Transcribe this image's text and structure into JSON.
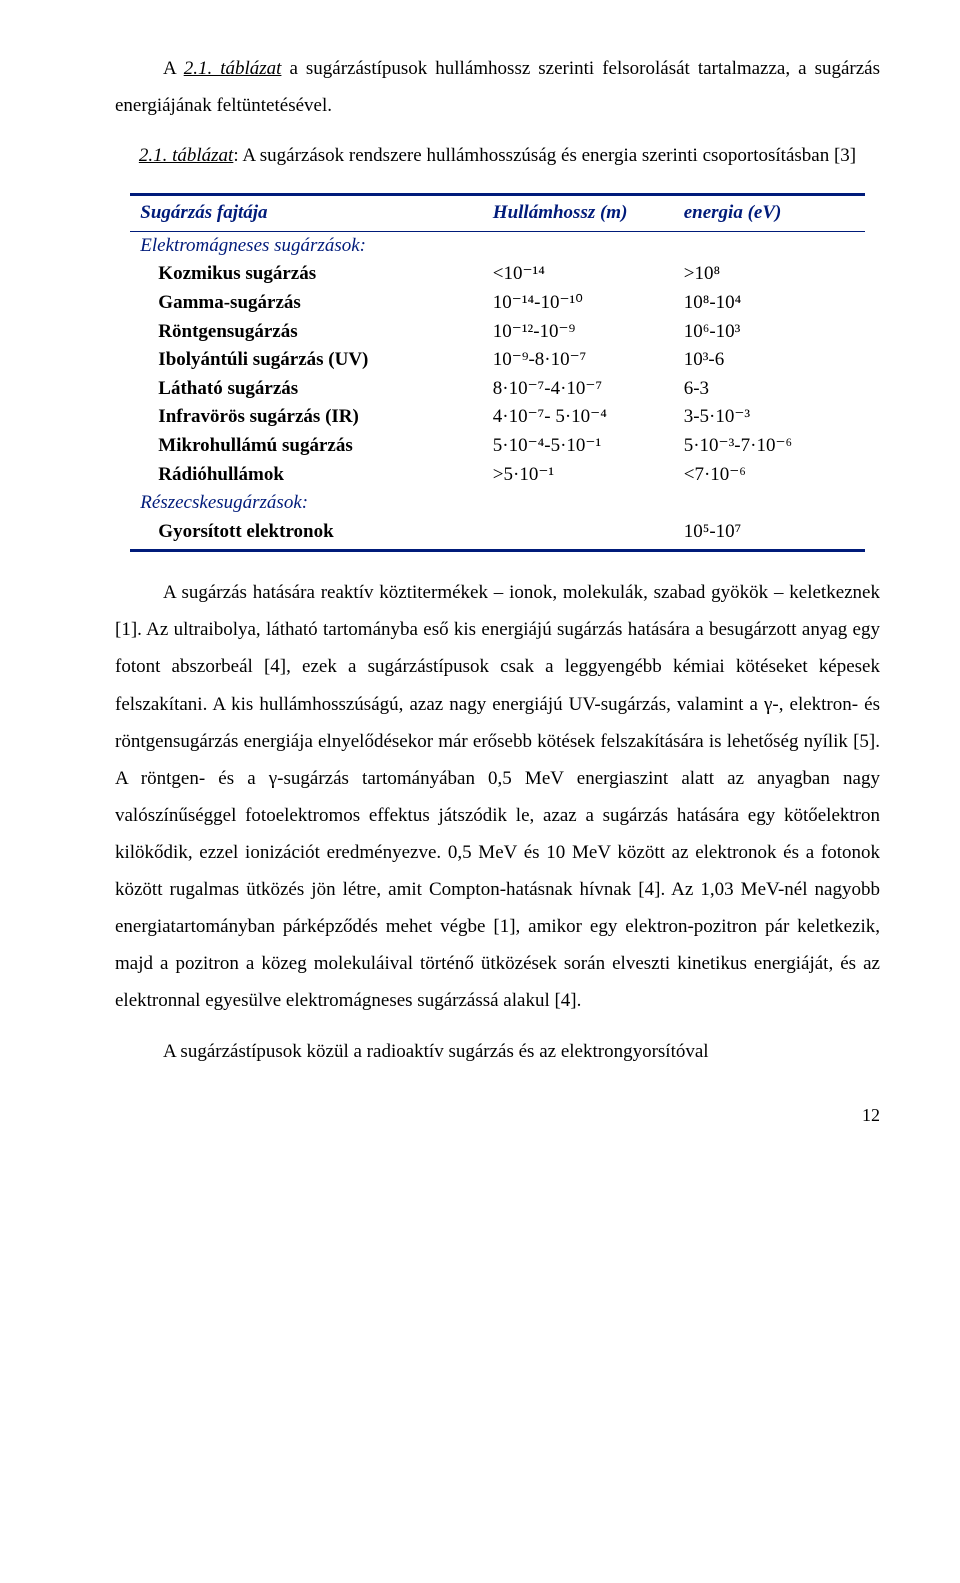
{
  "intro": {
    "para1_pre": "A ",
    "para1_link": "2.1. táblázat",
    "para1_post": " a sugárzástípusok hullámhossz szerinti felsorolását tartalmazza, a sugárzás energiájának feltüntetésével."
  },
  "caption": {
    "label": "2.1. táblázat",
    "text": ": A sugárzások rendszere hullámhosszúság és energia szerinti csoportosításban [3]"
  },
  "table": {
    "border_color": "#001b7a",
    "header_color": "#001b7a",
    "headers": [
      "Sugárzás fajtája",
      "Hullámhossz (m)",
      "energia (eV)"
    ],
    "section1": "Elektromágneses sugárzások:",
    "rows1": [
      {
        "label": "Kozmikus sugárzás",
        "wav": "<10⁻¹⁴",
        "ev": ">10⁸"
      },
      {
        "label": "Gamma-sugárzás",
        "wav": "10⁻¹⁴-10⁻¹⁰",
        "ev": "10⁸-10⁴"
      },
      {
        "label": "Röntgensugárzás",
        "wav": "10⁻¹²-10⁻⁹",
        "ev": "10⁶-10³"
      },
      {
        "label": "Ibolyántúli sugárzás (UV)",
        "wav": "10⁻⁹-8·10⁻⁷",
        "ev": "10³-6"
      },
      {
        "label": "Látható sugárzás",
        "wav": "8·10⁻⁷-4·10⁻⁷",
        "ev": "6-3"
      },
      {
        "label": "Infravörös sugárzás (IR)",
        "wav": "4·10⁻⁷- 5·10⁻⁴",
        "ev": "3-5·10⁻³"
      },
      {
        "label": "Mikrohullámú sugárzás",
        "wav": "5·10⁻⁴-5·10⁻¹",
        "ev": "5·10⁻³-7·10⁻⁶"
      },
      {
        "label": "Rádióhullámok",
        "wav": ">5·10⁻¹",
        "ev": "<7·10⁻⁶"
      }
    ],
    "section2": "Részecskesugárzások:",
    "rows2": [
      {
        "label": "Gyorsított elektronok",
        "wav": "",
        "ev": "10⁵-10⁷"
      }
    ]
  },
  "body": {
    "p1": "A sugárzás hatására reaktív köztitermékek – ionok, molekulák, szabad gyökök – keletkeznek [1]. Az ultraibolya, látható tartományba eső kis energiájú sugárzás hatására a besugárzott anyag egy fotont abszorbeál [4], ezek a sugárzástípusok csak a leggyengébb kémiai kötéseket képesek felszakítani. A kis hullámhosszúságú, azaz nagy energiájú UV-sugárzás, valamint a γ-, elektron- és röntgensugárzás energiája elnyelődésekor már erősebb kötések felszakítására is lehetőség nyílik [5]. A röntgen- és a γ-sugárzás tartományában 0,5 MeV energiaszint alatt az anyagban nagy valószínűséggel fotoelektromos effektus játszódik le, azaz a sugárzás hatására egy kötőelektron kilökődik, ezzel ionizációt eredményezve. 0,5 MeV és 10 MeV között az elektronok és a fotonok között rugalmas ütközés jön létre, amit Compton-hatásnak hívnak [4]. Az 1,03 MeV-nél nagyobb energiatartományban párképződés mehet végbe [1], amikor egy elektron-pozitron pár keletkezik, majd a pozitron a közeg molekuláival történő ütközések során elveszti kinetikus energiáját, és az elektronnal egyesülve elektromágneses sugárzássá alakul [4].",
    "p2": "A sugárzástípusok közül a radioaktív sugárzás és az elektrongyorsítóval"
  },
  "pagenum": "12"
}
